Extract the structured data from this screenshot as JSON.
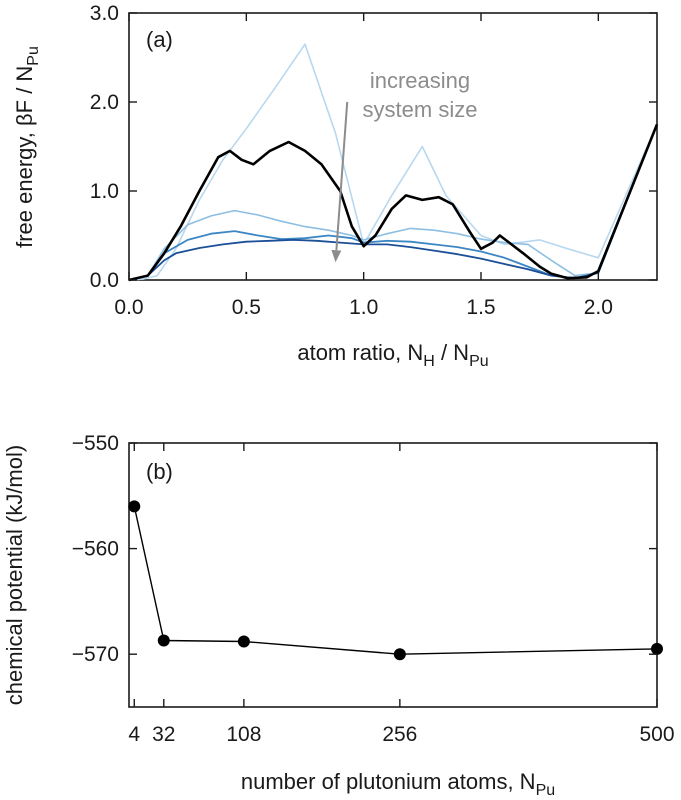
{
  "chart_data": [
    {
      "type": "line",
      "panel_label": "(a)",
      "xlabel": {
        "main": "atom ratio, N",
        "sub1": "H",
        "mid": " / N",
        "sub2": "Pu"
      },
      "ylabel": {
        "main": "free energy, βF / N",
        "sub": "Pu"
      },
      "xlim": [
        0.0,
        2.25
      ],
      "ylim": [
        0.0,
        3.0
      ],
      "xticks": [
        0.0,
        0.5,
        1.0,
        1.5,
        2.0
      ],
      "xtick_labels": [
        "0.0",
        "0.5",
        "1.0",
        "1.5",
        "2.0"
      ],
      "yticks": [
        0.0,
        1.0,
        2.0,
        3.0
      ],
      "ytick_labels": [
        "0.0",
        "1.0",
        "2.0",
        "3.0"
      ],
      "grid": false,
      "annotation": {
        "line1": "increasing",
        "line2": "system size",
        "arrow_from": [
          0.93,
          2.0
        ],
        "arrow_to": [
          0.88,
          0.2
        ]
      },
      "series": [
        {
          "color": "#b8d8ef",
          "width": 1.6,
          "x": [
            0.0,
            0.06,
            0.12,
            0.2,
            0.3,
            0.4,
            0.5,
            0.62,
            0.75,
            0.88,
            1.0,
            1.12,
            1.25,
            1.35,
            1.5,
            1.6,
            1.75,
            1.87,
            2.0,
            2.25
          ],
          "y": [
            0.0,
            0.01,
            0.05,
            0.35,
            0.9,
            1.35,
            1.7,
            2.15,
            2.65,
            1.65,
            0.4,
            0.95,
            1.5,
            0.95,
            0.5,
            0.4,
            0.45,
            0.35,
            0.25,
            1.75
          ]
        },
        {
          "color": "#8dbfe2",
          "width": 1.6,
          "x": [
            0.0,
            0.08,
            0.15,
            0.25,
            0.35,
            0.45,
            0.55,
            0.65,
            0.75,
            0.85,
            0.95,
            1.0,
            1.1,
            1.2,
            1.3,
            1.4,
            1.5,
            1.6,
            1.7,
            1.8,
            1.9,
            2.0,
            2.25
          ],
          "y": [
            0.0,
            0.05,
            0.35,
            0.62,
            0.72,
            0.78,
            0.73,
            0.66,
            0.6,
            0.56,
            0.5,
            0.45,
            0.52,
            0.58,
            0.56,
            0.52,
            0.46,
            0.42,
            0.4,
            0.22,
            0.05,
            0.08,
            1.75
          ]
        },
        {
          "color": "#3c86c4",
          "width": 1.8,
          "x": [
            0.0,
            0.08,
            0.15,
            0.25,
            0.35,
            0.45,
            0.55,
            0.65,
            0.75,
            0.85,
            0.95,
            1.0,
            1.1,
            1.2,
            1.3,
            1.4,
            1.5,
            1.6,
            1.7,
            1.8,
            1.9,
            2.0,
            2.25
          ],
          "y": [
            0.0,
            0.05,
            0.3,
            0.45,
            0.52,
            0.55,
            0.5,
            0.46,
            0.47,
            0.5,
            0.47,
            0.42,
            0.44,
            0.43,
            0.4,
            0.37,
            0.32,
            0.25,
            0.15,
            0.05,
            0.02,
            0.08,
            1.75
          ]
        },
        {
          "color": "#1b4f97",
          "width": 1.8,
          "x": [
            0.0,
            0.08,
            0.15,
            0.2,
            0.3,
            0.4,
            0.5,
            0.6,
            0.7,
            0.8,
            0.9,
            1.0,
            1.1,
            1.2,
            1.3,
            1.4,
            1.5,
            1.6,
            1.7,
            1.8,
            1.9,
            2.0,
            2.25
          ],
          "y": [
            0.0,
            0.05,
            0.22,
            0.3,
            0.36,
            0.4,
            0.43,
            0.44,
            0.45,
            0.44,
            0.42,
            0.4,
            0.4,
            0.37,
            0.33,
            0.29,
            0.24,
            0.18,
            0.12,
            0.05,
            0.02,
            0.08,
            1.75
          ]
        },
        {
          "color": "#000000",
          "width": 2.6,
          "x": [
            0.0,
            0.08,
            0.15,
            0.22,
            0.3,
            0.38,
            0.43,
            0.48,
            0.53,
            0.6,
            0.68,
            0.75,
            0.82,
            0.9,
            0.95,
            1.0,
            1.05,
            1.12,
            1.18,
            1.25,
            1.32,
            1.38,
            1.45,
            1.5,
            1.55,
            1.58,
            1.62,
            1.68,
            1.75,
            1.8,
            1.87,
            1.95,
            2.0,
            2.25
          ],
          "y": [
            0.0,
            0.05,
            0.3,
            0.6,
            1.0,
            1.38,
            1.45,
            1.35,
            1.3,
            1.45,
            1.55,
            1.45,
            1.3,
            1.0,
            0.6,
            0.38,
            0.5,
            0.8,
            0.95,
            0.9,
            0.93,
            0.85,
            0.55,
            0.35,
            0.42,
            0.5,
            0.42,
            0.3,
            0.15,
            0.07,
            0.02,
            0.03,
            0.1,
            1.75
          ]
        }
      ]
    },
    {
      "type": "line",
      "panel_label": "(b)",
      "xlabel": {
        "main": "number of plutonium atoms, N",
        "sub": "Pu"
      },
      "ylabel": "chemical potential (kJ/mol)",
      "xlim": [
        -1,
        500
      ],
      "ylim": [
        -575,
        -550
      ],
      "xticks": [
        4,
        32,
        108,
        256,
        500
      ],
      "xtick_labels": [
        "4",
        "32",
        "108",
        "256",
        "500"
      ],
      "yticks": [
        -570,
        -560,
        -550
      ],
      "ytick_labels": [
        "−570",
        "−560",
        "−550"
      ],
      "grid": false,
      "series": [
        {
          "color": "#000000",
          "marker": "circle",
          "x": [
            4,
            32,
            108,
            256,
            500
          ],
          "y": [
            -556.0,
            -568.7,
            -568.8,
            -570.0,
            -569.5
          ]
        }
      ]
    }
  ]
}
